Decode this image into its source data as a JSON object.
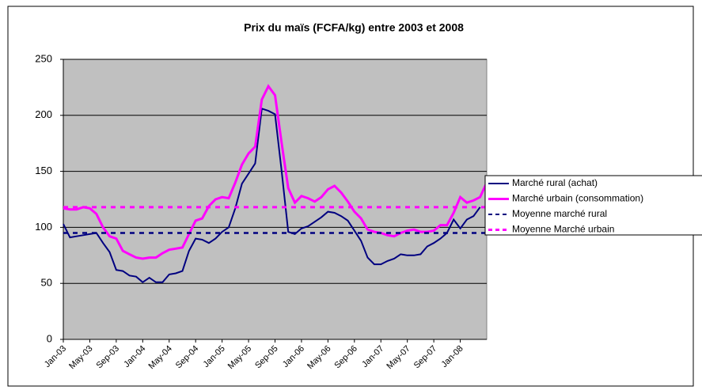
{
  "chart_data": {
    "type": "line",
    "title": "Prix du maïs (FCFA/kg) entre 2003 et 2008",
    "categories": [
      "Jan-03",
      null,
      null,
      null,
      "May-03",
      null,
      null,
      null,
      "Sep-03",
      null,
      null,
      null,
      "Jan-04",
      null,
      null,
      null,
      "May-04",
      null,
      null,
      null,
      "Sep-04",
      null,
      null,
      null,
      "Jan-05",
      null,
      null,
      null,
      "May-05",
      null,
      null,
      null,
      "Sep-05",
      null,
      null,
      null,
      "Jan-06",
      null,
      null,
      null,
      "May-06",
      null,
      null,
      null,
      "Sep-06",
      null,
      null,
      null,
      "Jan-07",
      null,
      null,
      null,
      "May-07",
      null,
      null,
      null,
      "Sep-07",
      null,
      null,
      null,
      "Jan-08",
      null,
      null,
      null,
      null
    ],
    "series": [
      {
        "name": "Marché rural (achat)",
        "color": "#000080",
        "values": [
          103,
          91,
          92,
          93,
          94,
          95,
          86,
          78,
          62,
          61,
          57,
          56,
          51,
          55,
          51,
          51,
          58,
          59,
          61,
          79,
          90,
          89,
          86,
          90,
          96,
          100,
          117,
          139,
          148,
          157,
          206,
          204,
          201,
          150,
          96,
          94,
          99,
          101,
          105,
          109,
          114,
          113,
          110,
          106,
          97,
          88,
          73,
          67,
          67,
          70,
          72,
          76,
          75,
          75,
          76,
          83,
          86,
          90,
          95,
          107,
          99,
          107,
          110,
          118,
          null
        ]
      },
      {
        "name": "Marché urbain (consommation)",
        "color": "#ff00ff",
        "values": [
          117,
          116,
          116,
          118,
          117,
          112,
          100,
          92,
          90,
          79,
          76,
          73,
          72,
          73,
          73,
          77,
          80,
          81,
          82,
          94,
          106,
          108,
          119,
          125,
          127,
          126,
          140,
          156,
          166,
          172,
          214,
          226,
          218,
          175,
          135,
          122,
          128,
          126,
          123,
          127,
          134,
          137,
          131,
          123,
          114,
          108,
          98,
          96,
          95,
          93,
          92,
          95,
          97,
          98,
          96,
          96,
          97,
          102,
          102,
          113,
          127,
          122,
          124,
          127,
          140
        ]
      },
      {
        "name": "Moyenne marché rural",
        "color": "#000080",
        "value": 95,
        "dash": true
      },
      {
        "name": "Moyenne Marché urbain",
        "color": "#ff00ff",
        "value": 118,
        "dash": true
      }
    ],
    "ylim": [
      0,
      250
    ],
    "yticks": [
      0,
      50,
      100,
      150,
      200,
      250
    ],
    "grid": true,
    "legend": "right"
  }
}
